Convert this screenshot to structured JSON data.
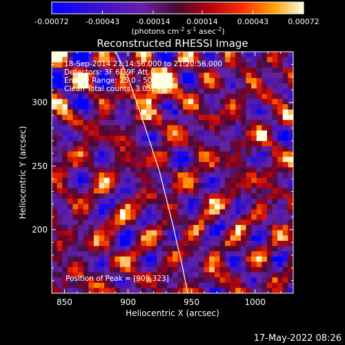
{
  "colorbar": {
    "tick_labels": [
      "-0.00072",
      "-0.00043",
      "-0.00014",
      "0.00014",
      "0.00043",
      "0.00072"
    ],
    "tick_values": [
      -0.00072,
      -0.00043,
      -0.00014,
      0.00014,
      0.00043,
      0.00072
    ],
    "range": [
      -0.00072,
      0.00072
    ],
    "units_main": "(photons cm",
    "units_exp1": "-2",
    "units_mid": " s",
    "units_exp2": "-1",
    "units_end": " asec",
    "units_exp3": "-2",
    "units_close": ")"
  },
  "plot": {
    "title": "Reconstructed RHESSI Image",
    "info_lines": [
      "18-Sep-2014 21:14:56.000 to 21:20:56.000",
      "Detectors: 3F 6F 9F Att 0",
      "Energy Range: 25.0 - 50.0 keV",
      "Clean    Total counts: 3.05E+03"
    ],
    "peak_label": "Position of Peak = [909,323]",
    "xlabel": "Heliocentric X (arcsec)",
    "ylabel": "Heliocentric Y (arcsec)",
    "xticks": [
      "850",
      "900",
      "950",
      "1000"
    ],
    "yticks": [
      "200",
      "250",
      "300"
    ],
    "xlim": [
      840,
      1030
    ],
    "ylim": [
      150,
      340
    ]
  },
  "timestamp": "17-May-2022 08:26",
  "colors": {
    "background": "#000000",
    "text": "#ffffff",
    "limb": "#ffffff"
  }
}
